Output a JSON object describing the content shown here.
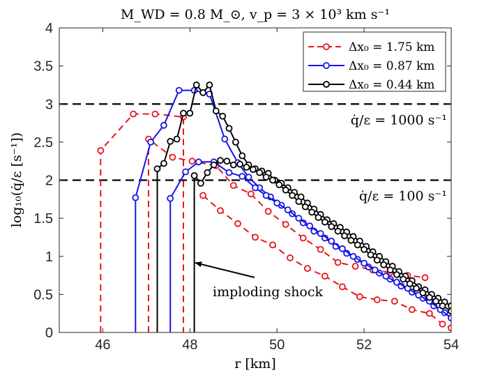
{
  "chart_data": {
    "type": "line",
    "title": "M_WD = 0.8 M_⊙,  v_p = 3 × 10³ km s⁻¹",
    "xlabel": "r [km]",
    "ylabel": "log₁₀(q̇/ε [s⁻¹])",
    "xlim": [
      45,
      54
    ],
    "ylim": [
      0,
      4
    ],
    "xticks": [
      46,
      48,
      50,
      52,
      54
    ],
    "yticks": [
      0,
      0.5,
      1,
      1.5,
      2,
      2.5,
      3,
      3.5,
      4
    ],
    "xtick_labels": [
      "46",
      "48",
      "50",
      "52",
      "54"
    ],
    "ytick_labels": [
      "0",
      "0.5",
      "1",
      "1.5",
      "2",
      "2.5",
      "3",
      "3.5",
      "4"
    ],
    "grid": false,
    "legend_position": "top-right",
    "hlines": [
      {
        "y": 3,
        "label": "q̇/ε = 1000 s⁻¹"
      },
      {
        "y": 2,
        "label": "q̇/ε = 100 s⁻¹"
      }
    ],
    "annotation": {
      "text": "imploding shock",
      "arrow_to": [
        48.15,
        0.9
      ]
    },
    "series": [
      {
        "name": "Δx₀ = 1.75 km",
        "color": "#e8141a",
        "dash": "dashed",
        "segments": [
          [
            [
              45.95,
              0
            ],
            [
              45.95,
              2.39
            ],
            [
              46.7,
              2.87
            ],
            [
              47.2,
              2.87
            ],
            [
              47.85,
              2.83
            ],
            [
              47.85,
              0
            ]
          ],
          [
            [
              47.05,
              0
            ],
            [
              47.05,
              2.54
            ],
            [
              47.6,
              2.3
            ],
            [
              48.05,
              2.25
            ],
            [
              48.6,
              2.19
            ],
            [
              49.0,
              1.93
            ],
            [
              49.4,
              1.82
            ],
            [
              49.8,
              1.59
            ],
            [
              50.2,
              1.42
            ],
            [
              50.6,
              1.24
            ],
            [
              51.0,
              1.09
            ],
            [
              51.4,
              0.92
            ],
            [
              51.8,
              0.87
            ],
            [
              52.2,
              0.82
            ],
            [
              52.6,
              0.79
            ],
            [
              53.0,
              0.75
            ],
            [
              53.4,
              0.72
            ]
          ],
          [
            [
              48.3,
              1.8
            ],
            [
              48.7,
              1.6
            ],
            [
              49.1,
              1.43
            ],
            [
              49.5,
              1.25
            ],
            [
              49.9,
              1.15
            ],
            [
              50.3,
              0.98
            ],
            [
              50.7,
              0.84
            ],
            [
              51.1,
              0.74
            ],
            [
              51.5,
              0.6
            ],
            [
              51.9,
              0.47
            ],
            [
              52.3,
              0.43
            ],
            [
              52.7,
              0.41
            ],
            [
              53.1,
              0.3
            ],
            [
              53.5,
              0.25
            ],
            [
              53.8,
              0.11
            ],
            [
              54.0,
              0.06
            ]
          ]
        ]
      },
      {
        "name": "Δx₀ = 0.87 km",
        "color": "#1414e6",
        "dash": "solid",
        "segments": [
          [
            [
              46.75,
              0
            ],
            [
              46.75,
              1.77
            ],
            [
              47.1,
              2.5
            ],
            [
              47.4,
              2.72
            ],
            [
              47.75,
              3.18
            ],
            [
              48.1,
              3.18
            ],
            [
              48.45,
              3.13
            ],
            [
              48.8,
              2.54
            ],
            [
              49.1,
              2.23
            ],
            [
              49.35,
              2.04
            ],
            [
              49.6,
              1.9
            ],
            [
              49.85,
              1.78
            ],
            [
              50.1,
              1.67
            ],
            [
              50.35,
              1.56
            ],
            [
              50.6,
              1.44
            ],
            [
              50.85,
              1.33
            ],
            [
              51.1,
              1.24
            ],
            [
              51.35,
              1.13
            ],
            [
              51.6,
              1.04
            ],
            [
              51.85,
              0.96
            ],
            [
              52.1,
              0.86
            ],
            [
              52.35,
              0.78
            ],
            [
              52.6,
              0.7
            ],
            [
              52.85,
              0.61
            ],
            [
              53.1,
              0.53
            ],
            [
              53.35,
              0.45
            ],
            [
              53.6,
              0.35
            ],
            [
              53.85,
              0.26
            ],
            [
              54.0,
              0.19
            ]
          ],
          [
            [
              47.55,
              0
            ],
            [
              47.55,
              1.76
            ],
            [
              47.9,
              2.11
            ],
            [
              48.2,
              2.24
            ],
            [
              48.55,
              2.24
            ],
            [
              48.9,
              2.1
            ],
            [
              49.2,
              2.05
            ],
            [
              49.5,
              1.9
            ],
            [
              49.75,
              1.8
            ],
            [
              50.0,
              1.7
            ],
            [
              50.25,
              1.61
            ],
            [
              50.5,
              1.5
            ],
            [
              50.75,
              1.4
            ],
            [
              51.0,
              1.3
            ],
            [
              51.25,
              1.2
            ],
            [
              51.5,
              1.1
            ],
            [
              51.75,
              1.0
            ],
            [
              52.0,
              0.91
            ],
            [
              52.25,
              0.82
            ],
            [
              52.5,
              0.74
            ],
            [
              52.75,
              0.66
            ],
            [
              53.0,
              0.58
            ],
            [
              53.25,
              0.49
            ],
            [
              53.5,
              0.41
            ],
            [
              53.75,
              0.3
            ],
            [
              54.0,
              0.19
            ]
          ]
        ]
      },
      {
        "name": "Δx₀ = 0.44 km",
        "color": "#000000",
        "dash": "solid",
        "segments": [
          [
            [
              47.25,
              0
            ],
            [
              47.25,
              2.15
            ],
            [
              47.4,
              2.22
            ],
            [
              47.55,
              2.51
            ],
            [
              47.7,
              2.54
            ],
            [
              47.85,
              2.88
            ],
            [
              48.0,
              2.88
            ],
            [
              48.15,
              3.25
            ],
            [
              48.3,
              3.15
            ],
            [
              48.45,
              3.25
            ],
            [
              48.6,
              2.91
            ],
            [
              48.75,
              2.84
            ],
            [
              48.9,
              2.68
            ],
            [
              49.05,
              2.5
            ],
            [
              49.2,
              2.32
            ],
            [
              49.35,
              2.2
            ],
            [
              49.5,
              2.15
            ],
            [
              49.65,
              2.12
            ],
            [
              49.8,
              2.09
            ],
            [
              49.95,
              2.0
            ],
            [
              50.1,
              1.96
            ],
            [
              50.25,
              1.9
            ],
            [
              50.4,
              1.84
            ],
            [
              50.55,
              1.78
            ],
            [
              50.7,
              1.7
            ],
            [
              50.85,
              1.62
            ],
            [
              51.0,
              1.55
            ],
            [
              51.15,
              1.48
            ],
            [
              51.3,
              1.43
            ],
            [
              51.45,
              1.38
            ],
            [
              51.6,
              1.32
            ],
            [
              51.75,
              1.26
            ],
            [
              51.9,
              1.2
            ],
            [
              52.05,
              1.13
            ],
            [
              52.2,
              1.06
            ],
            [
              52.35,
              1.0
            ],
            [
              52.5,
              0.93
            ],
            [
              52.65,
              0.87
            ],
            [
              52.8,
              0.8
            ],
            [
              52.95,
              0.74
            ],
            [
              53.1,
              0.68
            ],
            [
              53.25,
              0.6
            ],
            [
              53.4,
              0.56
            ],
            [
              53.55,
              0.5
            ],
            [
              53.7,
              0.45
            ],
            [
              53.85,
              0.4
            ],
            [
              54.0,
              0.35
            ]
          ],
          [
            [
              48.1,
              0
            ],
            [
              48.1,
              2.06
            ],
            [
              48.25,
              1.96
            ],
            [
              48.4,
              2.1
            ],
            [
              48.55,
              2.2
            ],
            [
              48.7,
              2.26
            ],
            [
              48.85,
              2.25
            ],
            [
              49.0,
              2.2
            ],
            [
              49.15,
              2.21
            ],
            [
              49.3,
              2.17
            ],
            [
              49.45,
              2.14
            ],
            [
              49.6,
              2.1
            ],
            [
              49.75,
              2.04
            ],
            [
              49.9,
              2.0
            ],
            [
              50.05,
              1.94
            ],
            [
              50.2,
              1.87
            ],
            [
              50.35,
              1.8
            ],
            [
              50.5,
              1.72
            ],
            [
              50.65,
              1.65
            ],
            [
              50.8,
              1.58
            ],
            [
              50.95,
              1.51
            ],
            [
              51.1,
              1.45
            ],
            [
              51.25,
              1.39
            ],
            [
              51.4,
              1.33
            ],
            [
              51.55,
              1.27
            ],
            [
              51.7,
              1.21
            ],
            [
              51.85,
              1.15
            ],
            [
              52.0,
              1.09
            ],
            [
              52.15,
              1.02
            ],
            [
              52.3,
              0.95
            ],
            [
              52.45,
              0.89
            ],
            [
              52.6,
              0.82
            ],
            [
              52.75,
              0.76
            ],
            [
              52.9,
              0.7
            ],
            [
              53.05,
              0.64
            ],
            [
              53.2,
              0.58
            ],
            [
              53.35,
              0.52
            ],
            [
              53.5,
              0.46
            ],
            [
              53.65,
              0.41
            ],
            [
              53.8,
              0.35
            ],
            [
              54.0,
              0.28
            ]
          ]
        ]
      }
    ]
  }
}
